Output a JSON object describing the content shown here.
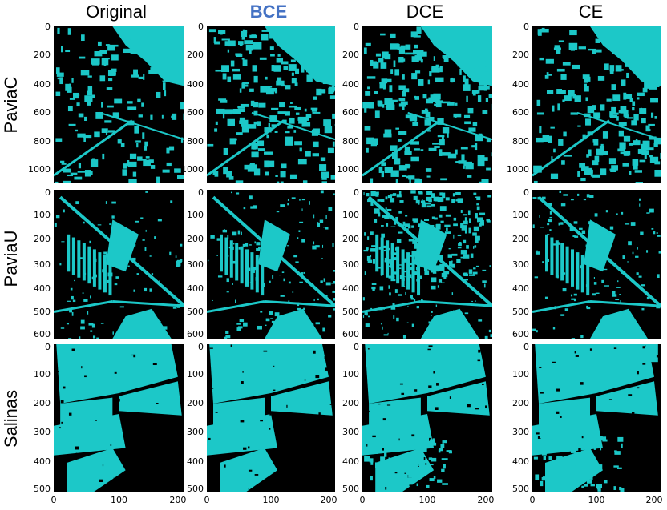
{
  "columns": [
    "Original",
    "BCE",
    "DCE",
    "CE"
  ],
  "highlight_column": "BCE",
  "highlight_color": "#4472c4",
  "rows": [
    {
      "label": "PaviaC",
      "y_ticks": [
        "0",
        "200",
        "400",
        "600",
        "800",
        "1000"
      ],
      "x_ticks": []
    },
    {
      "label": "PaviaU",
      "y_ticks": [
        "0",
        "100",
        "200",
        "300",
        "400",
        "500",
        "600"
      ],
      "x_ticks": []
    },
    {
      "label": "Salinas",
      "y_ticks": [
        "0",
        "100",
        "200",
        "300",
        "400",
        "500"
      ],
      "x_ticks": [
        "0",
        "100",
        "200"
      ]
    }
  ],
  "colors": {
    "foreground": "#1cc8c8",
    "background": "#000000"
  }
}
